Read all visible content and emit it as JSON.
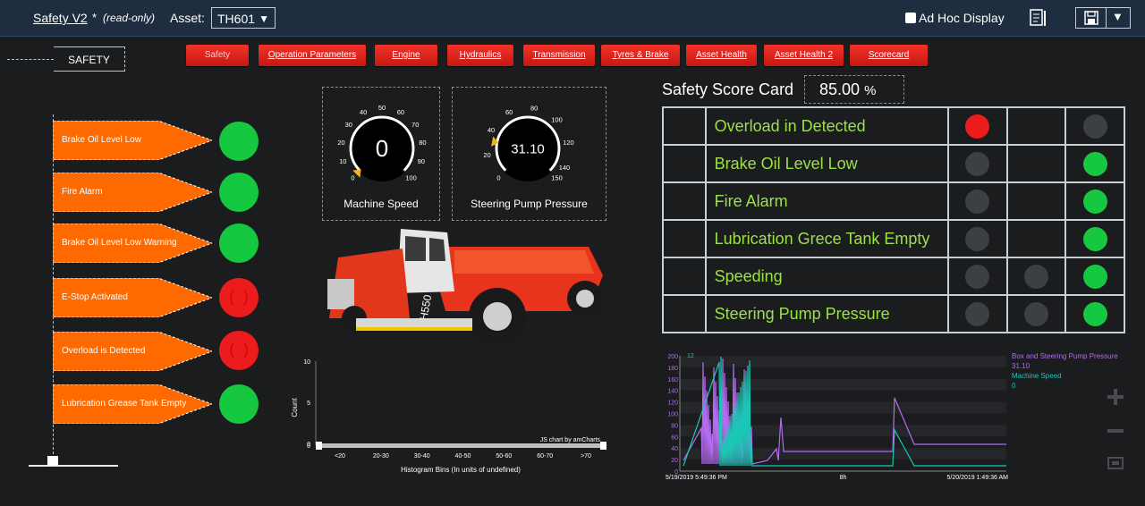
{
  "topbar": {
    "title": "Safety V2",
    "modified_mark": "*",
    "readonly": "(read-only)",
    "asset_label": "Asset:",
    "asset_value": "TH601",
    "adhoc_label": "Ad Hoc Display"
  },
  "tabs": [
    "Safety",
    "Operation Parameters",
    "Engine",
    "Hydraulics",
    "Transmission",
    "Tyres & Brake",
    "Asset Health",
    "Asset Health 2",
    "Scorecard"
  ],
  "section_label": "SAFETY",
  "alarms": [
    {
      "label": "Brake Oil Level Low",
      "status": "green"
    },
    {
      "label": "Fire Alarm",
      "status": "green"
    },
    {
      "label": "Brake Oil Level Low Warning",
      "status": "green"
    },
    {
      "label": "E-Stop Activated",
      "status": "red"
    },
    {
      "label": "Overload is Detected",
      "status": "red"
    },
    {
      "label": "Lubrication Grease Tank Empty",
      "status": "green"
    }
  ],
  "gauges": {
    "speed": {
      "title": "Machine Speed",
      "value": "0",
      "value_num": 0,
      "min": 0,
      "max": 100,
      "ticks": [
        "0",
        "10",
        "20",
        "30",
        "40",
        "50",
        "60",
        "70",
        "80",
        "90",
        "100"
      ]
    },
    "pressure": {
      "title": "Steering Pump Pressure",
      "value": "31.10",
      "value_num": 31.1,
      "min": 0,
      "max": 150,
      "ticks": [
        "0",
        "20",
        "40",
        "60",
        "80",
        "100",
        "120",
        "140",
        "150"
      ]
    }
  },
  "histogram": {
    "ylabel": "Count",
    "xlabel": "Histogram Bins (In units of undefined)",
    "yticks": [
      "10",
      "5",
      "0"
    ],
    "bins": [
      "<20",
      "20-30",
      "30-40",
      "40-50",
      "50-60",
      "60-70",
      ">70"
    ],
    "credit": "JS chart by amCharts",
    "slider_min": "0"
  },
  "scorecard": {
    "title": "Safety Score Card",
    "value": "85.00",
    "unit": "%",
    "rows": [
      {
        "label": "Overload in Detected",
        "c1": "red",
        "c2": "none",
        "c3": "gray"
      },
      {
        "label": "Brake Oil Level Low",
        "c1": "gray",
        "c2": "none",
        "c3": "green"
      },
      {
        "label": "Fire Alarm",
        "c1": "gray",
        "c2": "none",
        "c3": "green"
      },
      {
        "label": "Lubrication Grece Tank Empty",
        "c1": "gray",
        "c2": "none",
        "c3": "green"
      },
      {
        "label": "Speeding",
        "c1": "gray",
        "c2": "gray",
        "c3": "green"
      },
      {
        "label": "Steering Pump Pressure",
        "c1": "gray",
        "c2": "gray",
        "c3": "green"
      }
    ]
  },
  "trend": {
    "yticks_left": [
      "200",
      "180",
      "160",
      "140",
      "120",
      "100",
      "80",
      "60",
      "40",
      "20",
      "0"
    ],
    "ytick_right_top": "12",
    "x_start": "5/19/2019 5:49:36 PM",
    "x_mid": "8h",
    "x_end": "5/20/2019 1:49:36 AM",
    "legend": [
      {
        "name": "Box and Steering Pump Pressure",
        "value": "31.10",
        "color": "#b46bf0"
      },
      {
        "name": "Machine Speed",
        "value": "0",
        "color": "#19c7b4"
      }
    ]
  },
  "colors": {
    "accent_red": "#e8241c",
    "ok_green": "#16c740",
    "label_green": "#9be24a"
  }
}
